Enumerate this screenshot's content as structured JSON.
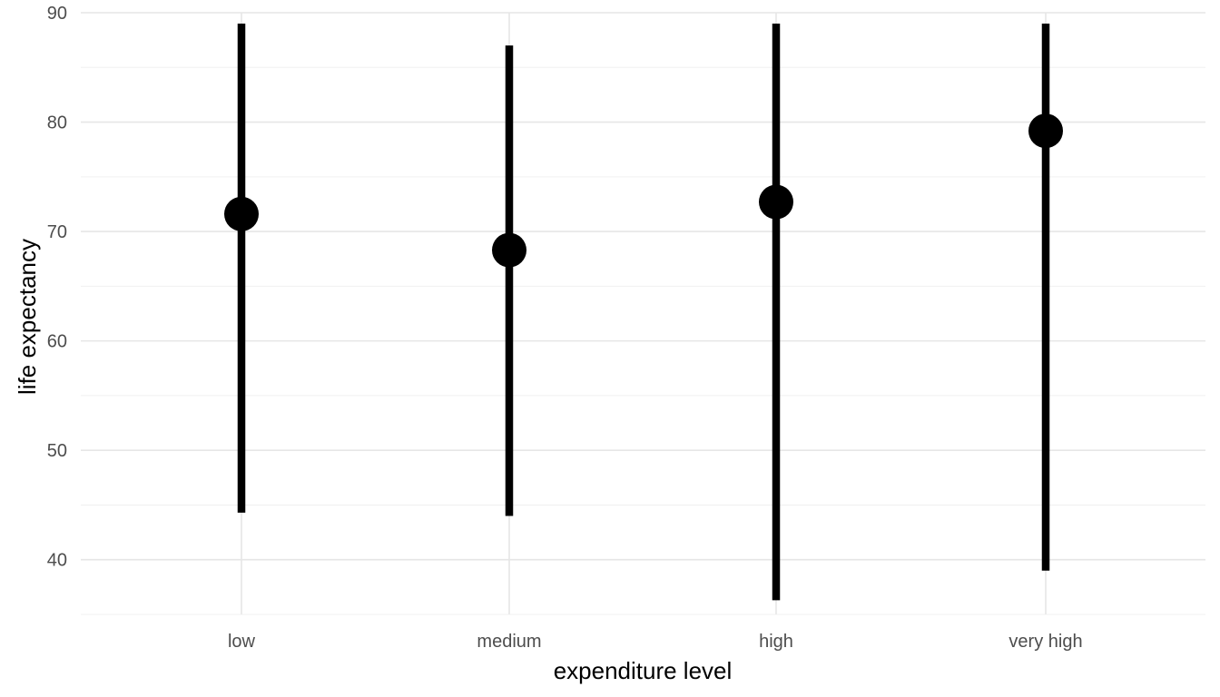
{
  "chart_data": {
    "type": "pointrange",
    "xlabel": "expenditure level",
    "ylabel": "life expectancy",
    "categories": [
      "low",
      "medium",
      "high",
      "very high"
    ],
    "points": [
      {
        "category": "low",
        "y": 71.6,
        "ymin": 44.3,
        "ymax": 89.0
      },
      {
        "category": "medium",
        "y": 68.3,
        "ymin": 44.0,
        "ymax": 87.0
      },
      {
        "category": "high",
        "y": 72.7,
        "ymin": 36.3,
        "ymax": 89.0
      },
      {
        "category": "very high",
        "y": 79.2,
        "ymin": 39.0,
        "ymax": 89.0
      }
    ],
    "ylim": [
      35,
      90
    ],
    "yticks": [
      40,
      50,
      60,
      70,
      80,
      90
    ],
    "grid": true,
    "theme": "minimal",
    "colors": {
      "mark": "#000000",
      "grid": "#e6e6e6",
      "tick_text": "#4d4d4d"
    }
  }
}
